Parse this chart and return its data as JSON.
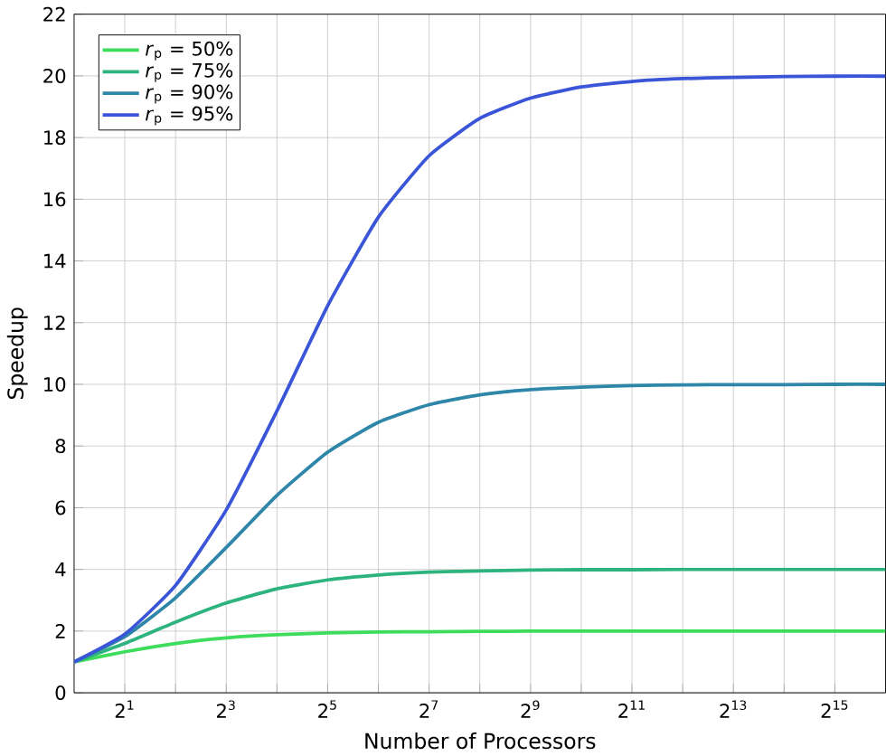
{
  "chart_data": {
    "type": "line",
    "xlabel": "Number of Processors",
    "ylabel": "Speedup",
    "log": "x",
    "x": [
      1,
      2,
      4,
      8,
      16,
      32,
      64,
      128,
      256,
      512,
      1024,
      2048,
      4096,
      8192,
      16384,
      32768,
      65536
    ],
    "xlim": [
      1,
      65536
    ],
    "xticks": [
      {
        "value": 2,
        "label": "2$^{1}$"
      },
      {
        "value": 4,
        "label": null
      },
      {
        "value": 8,
        "label": "2$^{3}$"
      },
      {
        "value": 16,
        "label": null
      },
      {
        "value": 32,
        "label": "2$^{5}$"
      },
      {
        "value": 64,
        "label": null
      },
      {
        "value": 128,
        "label": "2$^{7}$"
      },
      {
        "value": 256,
        "label": null
      },
      {
        "value": 512,
        "label": "2$^{9}$"
      },
      {
        "value": 1024,
        "label": null
      },
      {
        "value": 2048,
        "label": "2$^{11}$"
      },
      {
        "value": 4096,
        "label": null
      },
      {
        "value": 8192,
        "label": "2$^{13}$"
      },
      {
        "value": 16384,
        "label": null
      },
      {
        "value": 32768,
        "label": "2$^{15}$"
      }
    ],
    "ylim": [
      0,
      22
    ],
    "yticks": [
      0,
      2,
      4,
      6,
      8,
      10,
      12,
      14,
      16,
      18,
      20,
      22
    ],
    "grid": true,
    "legend": "top left",
    "marker": "none",
    "line_style": "solid",
    "series": [
      {
        "name": "*r*$_{p}$ = 50%",
        "color": "#3ddc5a",
        "values": [
          1,
          1.33,
          1.6,
          1.78,
          1.88,
          1.94,
          1.97,
          1.98,
          1.99,
          2,
          2,
          2,
          2,
          2,
          2,
          2,
          2
        ]
      },
      {
        "name": "*r*$_{p}$ = 75%",
        "color": "#2db37d",
        "values": [
          1,
          1.6,
          2.29,
          2.91,
          3.37,
          3.66,
          3.82,
          3.91,
          3.95,
          3.98,
          3.99,
          3.99,
          4,
          4,
          4,
          4,
          4
        ]
      },
      {
        "name": "*r*$_{p}$ = 90%",
        "color": "#2e86a8",
        "values": [
          1,
          1.82,
          3.08,
          4.71,
          6.4,
          7.8,
          8.77,
          9.34,
          9.66,
          9.83,
          9.91,
          9.96,
          9.98,
          9.99,
          9.99,
          10,
          10
        ]
      },
      {
        "name": "*r*$_{p}$ = 95%",
        "color": "#3a55d8",
        "values": [
          1,
          1.9,
          3.48,
          5.93,
          9.14,
          12.55,
          15.42,
          17.41,
          18.62,
          19.28,
          19.64,
          19.82,
          19.91,
          19.95,
          19.98,
          19.99,
          19.99
        ]
      }
    ]
  }
}
